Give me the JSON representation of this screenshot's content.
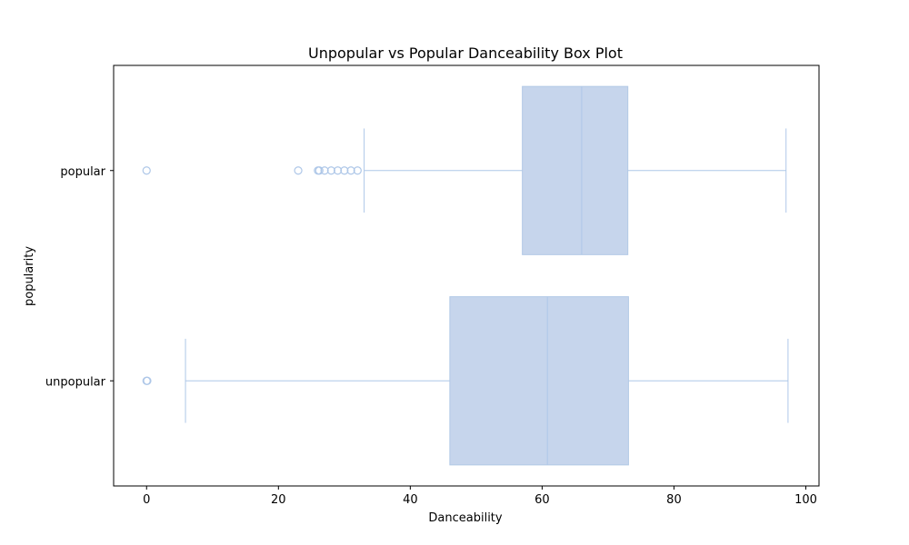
{
  "chart_data": {
    "type": "box",
    "title": "Unpopular vs Popular Danceability Box Plot",
    "xlabel": "Danceability",
    "ylabel": "popularity",
    "xlim": [
      -5,
      102
    ],
    "x_ticks": [
      0,
      20,
      40,
      60,
      80,
      100
    ],
    "orientation": "horizontal",
    "grid": false,
    "legend": "none",
    "colors": {
      "box_fill": "#c6d5ec",
      "box_edge": "#b2c9e6",
      "line": "#aec7e8",
      "axis": "#000000"
    },
    "categories": [
      "unpopular",
      "popular"
    ],
    "series": [
      {
        "name": "unpopular",
        "whisker_low": 5.9,
        "q1": 46.0,
        "median": 60.8,
        "q3": 73.1,
        "whisker_high": 97.3,
        "outliers": [
          0,
          0.1
        ]
      },
      {
        "name": "popular",
        "whisker_low": 33.0,
        "q1": 57.0,
        "median": 66.0,
        "q3": 73.0,
        "whisker_high": 97.0,
        "outliers": [
          0,
          23,
          26,
          26.2,
          27,
          28,
          29,
          30,
          31,
          32
        ]
      }
    ]
  }
}
